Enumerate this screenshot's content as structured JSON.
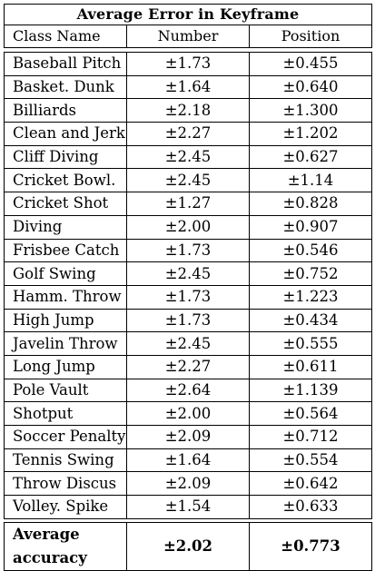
{
  "table": {
    "title": "Average Error in Keyframe",
    "headers": [
      "Class Name",
      "Number",
      "Position"
    ],
    "rows": [
      {
        "name": "Baseball Pitch",
        "number": "±1.73",
        "position": "±0.455"
      },
      {
        "name": "Basket. Dunk",
        "number": "±1.64",
        "position": "±0.640"
      },
      {
        "name": "Billiards",
        "number": "±2.18",
        "position": "±1.300"
      },
      {
        "name": "Clean and Jerk",
        "number": "±2.27",
        "position": "±1.202"
      },
      {
        "name": "Cliff Diving",
        "number": "±2.45",
        "position": "±0.627"
      },
      {
        "name": "Cricket Bowl.",
        "number": "±2.45",
        "position": "±1.14"
      },
      {
        "name": "Cricket Shot",
        "number": "±1.27",
        "position": "±0.828"
      },
      {
        "name": "Diving",
        "number": "±2.00",
        "position": "±0.907"
      },
      {
        "name": "Frisbee Catch",
        "number": "±1.73",
        "position": "±0.546"
      },
      {
        "name": "Golf Swing",
        "number": "±2.45",
        "position": "±0.752"
      },
      {
        "name": "Hamm. Throw",
        "number": "±1.73",
        "position": "±1.223"
      },
      {
        "name": "High Jump",
        "number": "±1.73",
        "position": "±0.434"
      },
      {
        "name": "Javelin Throw",
        "number": "±2.45",
        "position": "±0.555"
      },
      {
        "name": "Long Jump",
        "number": "±2.27",
        "position": "±0.611"
      },
      {
        "name": "Pole Vault",
        "number": "±2.64",
        "position": "±1.139"
      },
      {
        "name": "Shotput",
        "number": "±2.00",
        "position": "±0.564"
      },
      {
        "name": "Soccer Penalty",
        "number": "±2.09",
        "position": "±0.712"
      },
      {
        "name": "Tennis Swing",
        "number": "±1.64",
        "position": "±0.554"
      },
      {
        "name": "Throw Discus",
        "number": "±2.09",
        "position": "±0.642"
      },
      {
        "name": "Volley. Spike",
        "number": "±1.54",
        "position": "±0.633"
      }
    ],
    "average": {
      "name": "Average accuracy",
      "number": "±2.02",
      "position": "±0.773"
    }
  }
}
